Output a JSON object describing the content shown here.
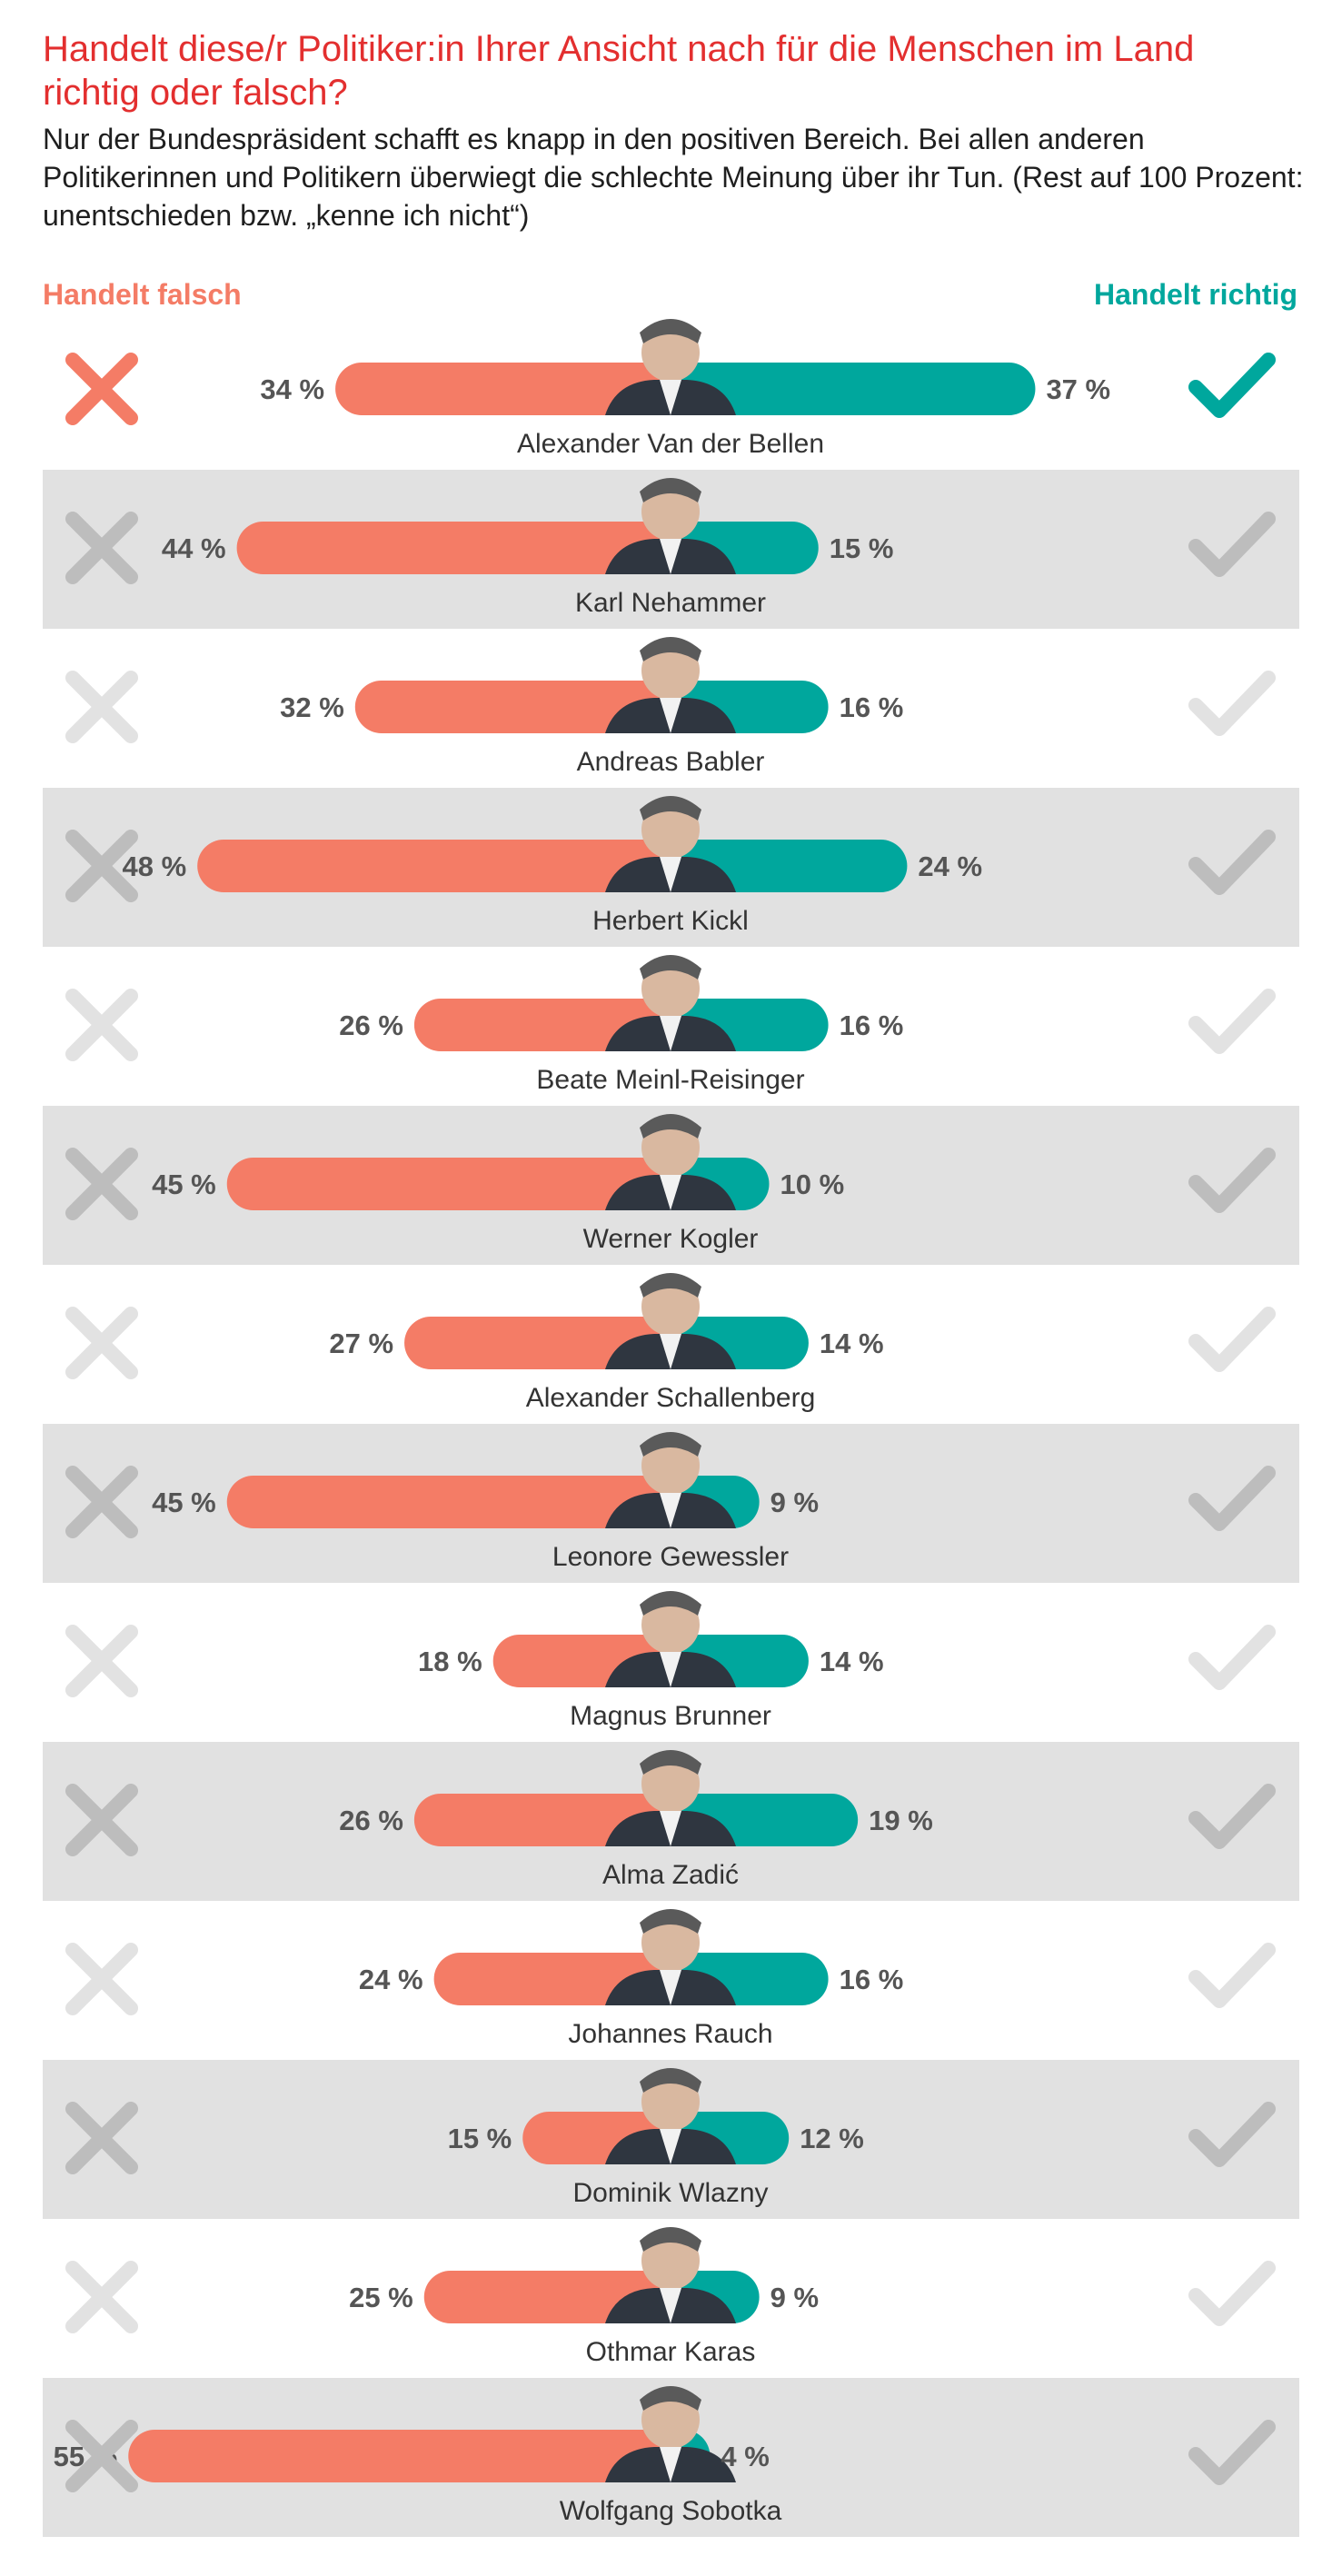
{
  "title": "Handelt diese/r Politiker:in Ihrer Ansicht nach für die Menschen im Land richtig oder falsch?",
  "subtitle": "Nur der Bundespräsident schafft es knapp in den positiven Bereich. Bei allen anderen Politikerinnen und Politikern überwiegt die schlechte Meinung über ihr Tun. (Rest auf 100 Prozent: unentschieden bzw. „kenne ich nicht“)",
  "legend": {
    "falsch": "Handelt falsch",
    "richtig": "Handelt richtig"
  },
  "colors": {
    "title": "#e32f2f",
    "falsch": "#f47c66",
    "richtig": "#00a79d",
    "band": "#e1e1e1",
    "icon_highlight_x": "#f47c66",
    "icon_highlight_check": "#00a79d",
    "icon_muted_on_band": "#bdbdbd",
    "icon_muted_on_white": "#e2e2e2"
  },
  "chart_data": {
    "type": "bar",
    "categories": [
      "Alexander Van der Bellen",
      "Karl Nehammer",
      "Andreas Babler",
      "Herbert Kickl",
      "Beate Meinl-Reisinger",
      "Werner Kogler",
      "Alexander Schallenberg",
      "Leonore Gewessler",
      "Magnus Brunner",
      "Alma Zadić",
      "Johannes Rauch",
      "Dominik Wlazny",
      "Othmar Karas",
      "Wolfgang Sobotka"
    ],
    "series": [
      {
        "name": "Handelt falsch",
        "values": [
          34,
          44,
          32,
          48,
          26,
          45,
          27,
          45,
          18,
          26,
          24,
          15,
          25,
          55
        ]
      },
      {
        "name": "Handelt richtig",
        "values": [
          37,
          15,
          16,
          24,
          16,
          10,
          14,
          9,
          14,
          19,
          16,
          12,
          9,
          4
        ]
      }
    ],
    "value_labels_falsch": [
      "34 %",
      "44 %",
      "32 %",
      "48 %",
      "26 %",
      "45 %",
      "27 %",
      "45 %",
      "18 %",
      "26 %",
      "24 %",
      "15 %",
      "25 %",
      "55 %"
    ],
    "value_labels_richtig": [
      "37 %",
      "15 %",
      "16 %",
      "24 %",
      "16 %",
      "10 %",
      "14 %",
      "9 %",
      "14 %",
      "19 %",
      "16 %",
      "12 %",
      "9 %",
      "4 %"
    ],
    "unit": "%",
    "legend_position": "top",
    "grid": false,
    "highlight_row": 0
  }
}
